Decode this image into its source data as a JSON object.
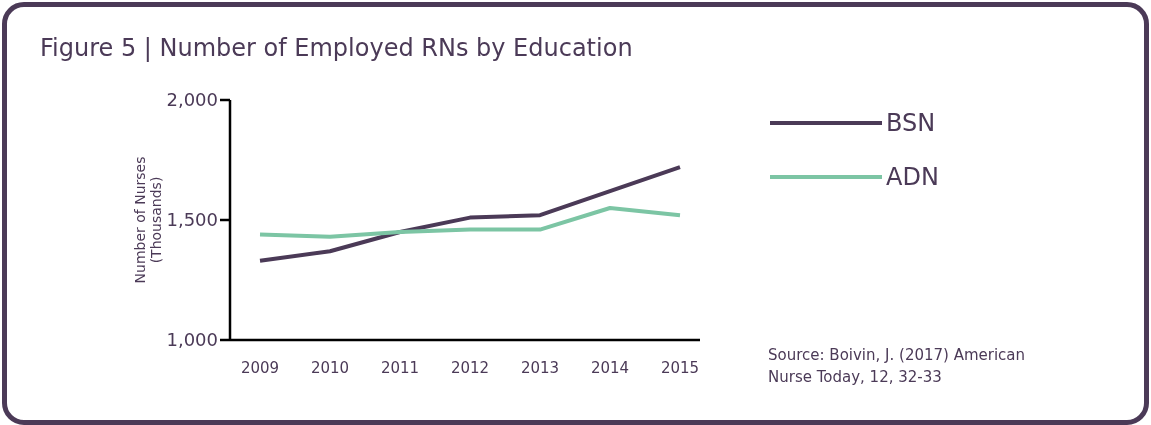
{
  "chart_data": {
    "type": "line",
    "title": "Figure 5 | Number of Employed RNs by Education",
    "ylabel": "Number of Nurses\n(Thousands)",
    "categories": [
      "2009",
      "2010",
      "2011",
      "2012",
      "2013",
      "2014",
      "2015"
    ],
    "series": [
      {
        "name": "BSN",
        "color": "#4b3a57",
        "values": [
          1330,
          1370,
          1450,
          1510,
          1520,
          1620,
          1720
        ]
      },
      {
        "name": "ADN",
        "color": "#7cc5a4",
        "values": [
          1440,
          1430,
          1450,
          1460,
          1460,
          1550,
          1520
        ]
      }
    ],
    "ylim": [
      1000,
      2000
    ],
    "yticks": [
      {
        "value": 1000,
        "label": "1,000"
      },
      {
        "value": 1500,
        "label": "1,500"
      },
      {
        "value": 2000,
        "label": "2,000"
      }
    ],
    "grid": false,
    "legend": "right",
    "marker": "none",
    "line_style": "solid",
    "annotations": [
      "Source: Boivin, J. (2017) American Nurse Today, 12, 32-33"
    ]
  }
}
